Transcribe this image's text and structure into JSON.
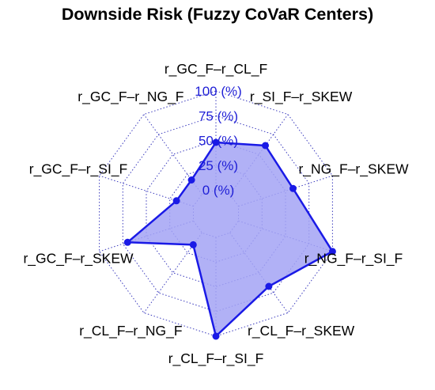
{
  "chart_data": {
    "type": "radar",
    "title": "Downside Risk (Fuzzy CoVaR Centers)",
    "axes": [
      "r_GC_F–r_CL_F",
      "r_SI_F–r_SKEW",
      "r_NG_F–r_SKEW",
      "r_NG_F–r_SI_F",
      "r_CL_F–r_SKEW",
      "r_CL_F–r_SI_F",
      "r_CL_F–r_NG_F",
      "r_GC_F–r_SKEW",
      "r_GC_F–r_SI_F",
      "r_GC_F–r_NG_F"
    ],
    "series": [
      {
        "values": [
          48,
          61,
          58,
          100,
          67,
          100,
          15,
          70,
          18,
          18
        ]
      }
    ],
    "rlim": [
      0,
      100
    ],
    "ticks": [
      0,
      25,
      50,
      75,
      100
    ],
    "tick_labels": [
      "0 (%)",
      "25 (%)",
      "50 (%)",
      "75 (%)",
      "100 (%)"
    ],
    "grid": true,
    "colors": {
      "fill": "#a3a3f5",
      "line": "#1a1ae6",
      "grid": "#3c3cbe",
      "tick_text": "#1f1fd6"
    }
  }
}
